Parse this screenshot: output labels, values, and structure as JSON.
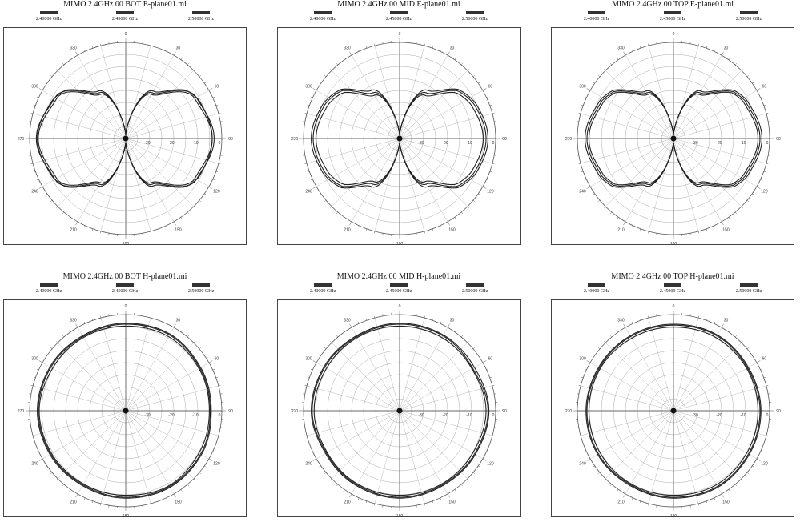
{
  "chart_data": [
    {
      "type": "polar",
      "title": "MIMO 2.4GHz 00 BOT E-plane01.mi",
      "pattern": "E",
      "legend": [
        "2.40000 GHz",
        "2.45000 GHz",
        "2.50000 GHz"
      ],
      "radial_tick_labels": [
        "-30",
        "-20",
        "-10",
        "0"
      ],
      "angle_tick_labels": [
        "0",
        "30",
        "60",
        "90",
        "120",
        "150",
        "180",
        "210",
        "240",
        "270",
        "300",
        "330"
      ],
      "series": [
        {
          "theta_deg": [
            0,
            30,
            60,
            90,
            120,
            150,
            180,
            210,
            240,
            270,
            300,
            330
          ],
          "radius_norm": [
            0.05,
            0.55,
            0.85,
            0.92,
            0.85,
            0.55,
            0.05,
            0.55,
            0.85,
            0.93,
            0.85,
            0.55
          ]
        },
        {
          "theta_deg": [
            0,
            30,
            60,
            90,
            120,
            150,
            180,
            210,
            240,
            270,
            300,
            330
          ],
          "radius_norm": [
            0.06,
            0.53,
            0.83,
            0.9,
            0.83,
            0.53,
            0.06,
            0.53,
            0.83,
            0.91,
            0.83,
            0.53
          ]
        },
        {
          "theta_deg": [
            0,
            30,
            60,
            90,
            120,
            150,
            180,
            210,
            240,
            270,
            300,
            330
          ],
          "radius_norm": [
            0.05,
            0.57,
            0.86,
            0.9,
            0.86,
            0.57,
            0.05,
            0.57,
            0.86,
            0.92,
            0.86,
            0.57
          ]
        }
      ]
    },
    {
      "type": "polar",
      "title": "MIMO 2.4GHz 00 MID E-plane01.mi",
      "pattern": "E",
      "legend": [
        "2.40000 GHz",
        "2.45000 GHz",
        "2.50000 GHz"
      ],
      "radial_tick_labels": [
        "-30",
        "-20",
        "-10",
        "0"
      ],
      "angle_tick_labels": [
        "0",
        "30",
        "60",
        "90",
        "120",
        "150",
        "180",
        "210",
        "240",
        "270",
        "300",
        "330"
      ],
      "series": [
        {
          "theta_deg": [
            0,
            30,
            60,
            90,
            120,
            150,
            180,
            210,
            240,
            270,
            300,
            330
          ],
          "radius_norm": [
            0.05,
            0.55,
            0.85,
            0.9,
            0.85,
            0.55,
            0.05,
            0.55,
            0.85,
            0.9,
            0.85,
            0.55
          ]
        },
        {
          "theta_deg": [
            0,
            30,
            60,
            90,
            120,
            150,
            180,
            210,
            240,
            270,
            300,
            330
          ],
          "radius_norm": [
            0.06,
            0.52,
            0.82,
            0.87,
            0.82,
            0.52,
            0.06,
            0.52,
            0.82,
            0.87,
            0.82,
            0.52
          ]
        },
        {
          "theta_deg": [
            0,
            30,
            60,
            90,
            120,
            150,
            180,
            210,
            240,
            270,
            300,
            330
          ],
          "radius_norm": [
            0.05,
            0.58,
            0.87,
            0.92,
            0.87,
            0.58,
            0.05,
            0.58,
            0.87,
            0.92,
            0.87,
            0.58
          ]
        }
      ]
    },
    {
      "type": "polar",
      "title": "MIMO 2.4GHz 00 TOP E-plane01.mi",
      "pattern": "E",
      "legend": [
        "2.40000 GHz",
        "2.45000 GHz",
        "2.50000 GHz"
      ],
      "radial_tick_labels": [
        "-30",
        "-20",
        "-10",
        "0"
      ],
      "angle_tick_labels": [
        "0",
        "30",
        "60",
        "90",
        "120",
        "150",
        "180",
        "210",
        "240",
        "270",
        "300",
        "330"
      ],
      "series": [
        {
          "theta_deg": [
            0,
            30,
            60,
            90,
            120,
            150,
            180,
            210,
            240,
            270,
            300,
            330
          ],
          "radius_norm": [
            0.05,
            0.55,
            0.84,
            0.9,
            0.84,
            0.55,
            0.05,
            0.55,
            0.84,
            0.9,
            0.84,
            0.55
          ]
        },
        {
          "theta_deg": [
            0,
            30,
            60,
            90,
            120,
            150,
            180,
            210,
            240,
            270,
            300,
            330
          ],
          "radius_norm": [
            0.06,
            0.53,
            0.82,
            0.88,
            0.82,
            0.53,
            0.06,
            0.53,
            0.82,
            0.88,
            0.82,
            0.53
          ]
        },
        {
          "theta_deg": [
            0,
            30,
            60,
            90,
            120,
            150,
            180,
            210,
            240,
            270,
            300,
            330
          ],
          "radius_norm": [
            0.05,
            0.57,
            0.86,
            0.92,
            0.86,
            0.57,
            0.05,
            0.57,
            0.86,
            0.92,
            0.86,
            0.57
          ]
        }
      ]
    },
    {
      "type": "polar",
      "title": "MIMO 2.4GHz 00 BOT H-plane01.mi",
      "pattern": "H",
      "legend": [
        "2.40000 GHz",
        "2.45000 GHz",
        "2.50000 GHz"
      ],
      "radial_tick_labels": [
        "-30",
        "-20",
        "-10",
        "0"
      ],
      "angle_tick_labels": [
        "0",
        "30",
        "60",
        "90",
        "120",
        "150",
        "180",
        "210",
        "240",
        "270",
        "300",
        "330"
      ],
      "series": [
        {
          "theta_deg": [
            0,
            30,
            60,
            90,
            120,
            150,
            180,
            210,
            240,
            270,
            300,
            330
          ],
          "radius_norm": [
            0.9,
            0.91,
            0.89,
            0.88,
            0.9,
            0.91,
            0.9,
            0.89,
            0.9,
            0.91,
            0.9,
            0.89
          ]
        },
        {
          "theta_deg": [
            0,
            30,
            60,
            90,
            120,
            150,
            180,
            210,
            240,
            270,
            300,
            330
          ],
          "radius_norm": [
            0.88,
            0.89,
            0.88,
            0.87,
            0.88,
            0.9,
            0.88,
            0.88,
            0.89,
            0.9,
            0.88,
            0.88
          ]
        },
        {
          "theta_deg": [
            0,
            30,
            60,
            90,
            120,
            150,
            180,
            210,
            240,
            270,
            300,
            330
          ],
          "radius_norm": [
            0.91,
            0.92,
            0.9,
            0.89,
            0.91,
            0.92,
            0.91,
            0.9,
            0.91,
            0.92,
            0.91,
            0.9
          ]
        }
      ]
    },
    {
      "type": "polar",
      "title": "MIMO 2.4GHz 00 MID H-plane01.mi",
      "pattern": "H",
      "legend": [
        "2.40000 GHz",
        "2.45000 GHz",
        "2.50000 GHz"
      ],
      "radial_tick_labels": [
        "-30",
        "-20",
        "-10",
        "0"
      ],
      "angle_tick_labels": [
        "0",
        "30",
        "60",
        "90",
        "120",
        "150",
        "180",
        "210",
        "240",
        "270",
        "300",
        "330"
      ],
      "series": [
        {
          "theta_deg": [
            0,
            30,
            60,
            90,
            120,
            150,
            180,
            210,
            240,
            270,
            300,
            330
          ],
          "radius_norm": [
            0.9,
            0.9,
            0.88,
            0.92,
            0.9,
            0.89,
            0.9,
            0.89,
            0.88,
            0.91,
            0.9,
            0.89
          ]
        },
        {
          "theta_deg": [
            0,
            30,
            60,
            90,
            120,
            150,
            180,
            210,
            240,
            270,
            300,
            330
          ],
          "radius_norm": [
            0.88,
            0.88,
            0.87,
            0.9,
            0.88,
            0.88,
            0.88,
            0.88,
            0.87,
            0.89,
            0.88,
            0.88
          ]
        },
        {
          "theta_deg": [
            0,
            30,
            60,
            90,
            120,
            150,
            180,
            210,
            240,
            270,
            300,
            330
          ],
          "radius_norm": [
            0.91,
            0.91,
            0.9,
            0.93,
            0.91,
            0.9,
            0.91,
            0.9,
            0.89,
            0.92,
            0.91,
            0.9
          ]
        }
      ]
    },
    {
      "type": "polar",
      "title": "MIMO 2.4GHz 00 TOP H-plane01.mi",
      "pattern": "H",
      "legend": [
        "2.40000 GHz",
        "2.45000 GHz",
        "2.50000 GHz"
      ],
      "radial_tick_labels": [
        "-30",
        "-20",
        "-10",
        "0"
      ],
      "angle_tick_labels": [
        "0",
        "30",
        "60",
        "90",
        "120",
        "150",
        "180",
        "210",
        "240",
        "270",
        "300",
        "330"
      ],
      "series": [
        {
          "theta_deg": [
            0,
            30,
            60,
            90,
            120,
            150,
            180,
            210,
            240,
            270,
            300,
            330
          ],
          "radius_norm": [
            0.89,
            0.9,
            0.89,
            0.9,
            0.9,
            0.91,
            0.9,
            0.89,
            0.9,
            0.9,
            0.89,
            0.89
          ]
        },
        {
          "theta_deg": [
            0,
            30,
            60,
            90,
            120,
            150,
            180,
            210,
            240,
            270,
            300,
            330
          ],
          "radius_norm": [
            0.87,
            0.88,
            0.88,
            0.88,
            0.88,
            0.89,
            0.88,
            0.88,
            0.88,
            0.88,
            0.88,
            0.87
          ]
        },
        {
          "theta_deg": [
            0,
            30,
            60,
            90,
            120,
            150,
            180,
            210,
            240,
            270,
            300,
            330
          ],
          "radius_norm": [
            0.9,
            0.91,
            0.9,
            0.91,
            0.91,
            0.92,
            0.91,
            0.9,
            0.91,
            0.91,
            0.9,
            0.9
          ]
        }
      ]
    }
  ]
}
